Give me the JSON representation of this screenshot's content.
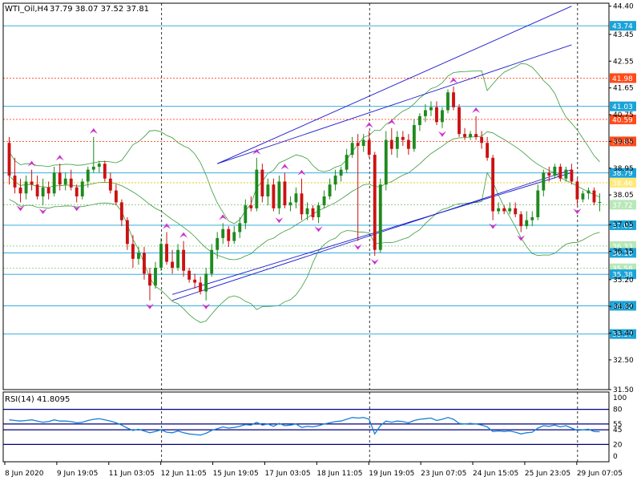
{
  "header": {
    "symbol": "WTI_Oil,H4",
    "ohlc": "37.79 38.07 37.52 37.81"
  },
  "rsi_panel": {
    "label": "RSI(14) 41.8095",
    "scale": [
      "100",
      "80",
      "55",
      "45",
      "20",
      "0"
    ],
    "levels": [
      80,
      55,
      45,
      20
    ]
  },
  "colors": {
    "bull": "#1e8a1e",
    "bear": "#cc1111",
    "level_line": "#1aa3d8",
    "level_tag": "#1aa3d8",
    "resistance_tag": "#ff4a1a",
    "pivot_tag": "#ffe97a",
    "pale_tag": "#b8e8b8",
    "channel": "#1a1acc",
    "bollinger": "#3a9a3a",
    "fractal": "#cc33cc",
    "rsi_line": "#1a7fd8"
  },
  "chart_data": {
    "type": "candlestick",
    "title": "WTI_Oil,H4",
    "ylim": [
      31.5,
      44.5
    ],
    "y_ticks": [
      "44.40",
      "43.45",
      "42.55",
      "41.65",
      "40.75",
      "39.85",
      "38.95",
      "38.05",
      "37.05",
      "36.15",
      "35.20",
      "34.30",
      "33.40",
      "32.50",
      "31.50"
    ],
    "x_ticks": [
      "8 Jun 2020",
      "9 Jun 19:05",
      "11 Jun 03:05",
      "12 Jun 11:05",
      "15 Jun 19:05",
      "17 Jun 03:05",
      "18 Jun 11:05",
      "19 Jun 19:05",
      "23 Jun 07:05",
      "24 Jun 15:05",
      "25 Jun 23:05",
      "29 Jun 07:05"
    ],
    "period_separators": [
      "12 Jun 11:05",
      "19 Jun 19:05",
      "29 Jun 07:05"
    ],
    "horizontal_levels": [
      {
        "label": "43.74",
        "value": 43.74,
        "style": "solid",
        "tag": "level"
      },
      {
        "label": "41.98",
        "value": 41.98,
        "style": "dotted",
        "tag": "resistance"
      },
      {
        "label": "41.03",
        "value": 41.03,
        "style": "solid",
        "tag": "level"
      },
      {
        "label": "40.59",
        "value": 40.59,
        "style": "dotted",
        "tag": "resistance"
      },
      {
        "label": "39.85",
        "value": 39.85,
        "style": "dotted",
        "tag": "resistance"
      },
      {
        "label": "38.79",
        "value": 38.79,
        "style": "solid",
        "tag": "level"
      },
      {
        "label": "38.46",
        "value": 38.46,
        "style": "dotted",
        "tag": "pivot"
      },
      {
        "label": "37.72",
        "value": 37.72,
        "style": "dotted",
        "tag": "pale"
      },
      {
        "label": "37.03",
        "value": 37.03,
        "style": "solid",
        "tag": "level"
      },
      {
        "label": "36.33",
        "value": 36.33,
        "style": "dotted",
        "tag": "pale"
      },
      {
        "label": "36.10",
        "value": 36.1,
        "style": "solid",
        "tag": "level"
      },
      {
        "label": "35.58",
        "value": 35.58,
        "style": "dotted",
        "tag": "pale"
      },
      {
        "label": "35.38",
        "value": 35.38,
        "style": "solid",
        "tag": "level"
      },
      {
        "label": "34.32",
        "value": 34.32,
        "style": "solid",
        "tag": "level"
      },
      {
        "label": "33.37",
        "value": 33.37,
        "style": "solid",
        "tag": "level"
      }
    ],
    "candles": [
      {
        "o": 39.8,
        "h": 40.0,
        "l": 38.4,
        "c": 38.7
      },
      {
        "o": 38.7,
        "h": 39.3,
        "l": 38.1,
        "c": 38.3
      },
      {
        "o": 38.3,
        "h": 38.6,
        "l": 37.8,
        "c": 38.1
      },
      {
        "o": 38.1,
        "h": 38.7,
        "l": 37.9,
        "c": 38.5
      },
      {
        "o": 38.5,
        "h": 38.9,
        "l": 38.2,
        "c": 38.4
      },
      {
        "o": 38.4,
        "h": 38.7,
        "l": 37.9,
        "c": 38.0
      },
      {
        "o": 38.0,
        "h": 38.6,
        "l": 37.7,
        "c": 38.3
      },
      {
        "o": 38.3,
        "h": 38.5,
        "l": 37.9,
        "c": 38.1
      },
      {
        "o": 38.1,
        "h": 39.0,
        "l": 38.0,
        "c": 38.8
      },
      {
        "o": 38.8,
        "h": 39.1,
        "l": 38.2,
        "c": 38.4
      },
      {
        "o": 38.4,
        "h": 38.8,
        "l": 38.2,
        "c": 38.6
      },
      {
        "o": 38.6,
        "h": 38.9,
        "l": 38.2,
        "c": 38.3
      },
      {
        "o": 38.3,
        "h": 38.4,
        "l": 37.8,
        "c": 38.0
      },
      {
        "o": 38.0,
        "h": 38.6,
        "l": 37.9,
        "c": 38.5
      },
      {
        "o": 38.5,
        "h": 39.0,
        "l": 38.3,
        "c": 38.9
      },
      {
        "o": 38.9,
        "h": 40.0,
        "l": 38.8,
        "c": 39.0
      },
      {
        "o": 39.0,
        "h": 39.2,
        "l": 38.8,
        "c": 39.1
      },
      {
        "o": 39.1,
        "h": 39.2,
        "l": 38.5,
        "c": 38.6
      },
      {
        "o": 38.6,
        "h": 38.8,
        "l": 38.1,
        "c": 38.2
      },
      {
        "o": 38.2,
        "h": 38.4,
        "l": 37.7,
        "c": 37.8
      },
      {
        "o": 37.8,
        "h": 37.9,
        "l": 37.0,
        "c": 37.2
      },
      {
        "o": 37.2,
        "h": 37.3,
        "l": 36.2,
        "c": 36.4
      },
      {
        "o": 36.4,
        "h": 36.7,
        "l": 35.6,
        "c": 35.9
      },
      {
        "o": 35.9,
        "h": 36.3,
        "l": 35.7,
        "c": 36.1
      },
      {
        "o": 36.1,
        "h": 36.3,
        "l": 35.2,
        "c": 35.4
      },
      {
        "o": 35.4,
        "h": 35.6,
        "l": 34.5,
        "c": 35.0
      },
      {
        "o": 35.0,
        "h": 35.8,
        "l": 34.9,
        "c": 35.6
      },
      {
        "o": 35.6,
        "h": 36.6,
        "l": 35.5,
        "c": 36.4
      },
      {
        "o": 36.4,
        "h": 36.8,
        "l": 35.7,
        "c": 35.8
      },
      {
        "o": 35.8,
        "h": 36.2,
        "l": 35.4,
        "c": 35.6
      },
      {
        "o": 35.6,
        "h": 36.4,
        "l": 35.5,
        "c": 36.2
      },
      {
        "o": 36.2,
        "h": 36.5,
        "l": 35.3,
        "c": 35.5
      },
      {
        "o": 35.5,
        "h": 35.6,
        "l": 35.1,
        "c": 35.2
      },
      {
        "o": 35.2,
        "h": 35.4,
        "l": 34.9,
        "c": 35.1
      },
      {
        "o": 35.1,
        "h": 35.3,
        "l": 34.7,
        "c": 34.8
      },
      {
        "o": 34.8,
        "h": 35.6,
        "l": 34.5,
        "c": 35.4
      },
      {
        "o": 35.4,
        "h": 36.4,
        "l": 35.3,
        "c": 36.2
      },
      {
        "o": 36.2,
        "h": 36.8,
        "l": 35.9,
        "c": 36.6
      },
      {
        "o": 36.6,
        "h": 37.1,
        "l": 36.4,
        "c": 36.9
      },
      {
        "o": 36.9,
        "h": 37.0,
        "l": 36.3,
        "c": 36.5
      },
      {
        "o": 36.5,
        "h": 37.0,
        "l": 36.4,
        "c": 36.8
      },
      {
        "o": 36.8,
        "h": 37.3,
        "l": 36.6,
        "c": 37.1
      },
      {
        "o": 37.1,
        "h": 37.9,
        "l": 36.9,
        "c": 37.7
      },
      {
        "o": 37.7,
        "h": 38.0,
        "l": 37.5,
        "c": 37.6
      },
      {
        "o": 37.6,
        "h": 39.3,
        "l": 37.5,
        "c": 38.9
      },
      {
        "o": 38.9,
        "h": 39.1,
        "l": 37.8,
        "c": 38.0
      },
      {
        "o": 38.0,
        "h": 38.6,
        "l": 37.7,
        "c": 38.4
      },
      {
        "o": 38.4,
        "h": 38.6,
        "l": 37.5,
        "c": 37.6
      },
      {
        "o": 37.6,
        "h": 38.7,
        "l": 37.4,
        "c": 38.5
      },
      {
        "o": 38.5,
        "h": 38.8,
        "l": 37.6,
        "c": 37.7
      },
      {
        "o": 37.7,
        "h": 38.0,
        "l": 37.5,
        "c": 37.8
      },
      {
        "o": 37.8,
        "h": 38.3,
        "l": 37.6,
        "c": 38.1
      },
      {
        "o": 38.1,
        "h": 38.6,
        "l": 37.2,
        "c": 37.4
      },
      {
        "o": 37.4,
        "h": 37.8,
        "l": 37.2,
        "c": 37.6
      },
      {
        "o": 37.6,
        "h": 37.7,
        "l": 37.2,
        "c": 37.3
      },
      {
        "o": 37.3,
        "h": 37.8,
        "l": 37.1,
        "c": 37.7
      },
      {
        "o": 37.7,
        "h": 38.2,
        "l": 37.6,
        "c": 38.0
      },
      {
        "o": 38.0,
        "h": 38.6,
        "l": 37.9,
        "c": 38.4
      },
      {
        "o": 38.4,
        "h": 38.9,
        "l": 38.2,
        "c": 38.7
      },
      {
        "o": 38.7,
        "h": 39.0,
        "l": 38.5,
        "c": 38.9
      },
      {
        "o": 38.9,
        "h": 39.6,
        "l": 38.8,
        "c": 39.4
      },
      {
        "o": 39.4,
        "h": 40.0,
        "l": 39.3,
        "c": 39.8
      },
      {
        "o": 39.8,
        "h": 40.1,
        "l": 36.5,
        "c": 39.7
      },
      {
        "o": 39.7,
        "h": 40.1,
        "l": 39.5,
        "c": 39.9
      },
      {
        "o": 39.9,
        "h": 40.2,
        "l": 39.3,
        "c": 39.4
      },
      {
        "o": 39.4,
        "h": 39.5,
        "l": 36.0,
        "c": 36.2
      },
      {
        "o": 36.2,
        "h": 38.6,
        "l": 36.1,
        "c": 38.4
      },
      {
        "o": 38.4,
        "h": 40.2,
        "l": 38.2,
        "c": 39.9
      },
      {
        "o": 39.9,
        "h": 40.3,
        "l": 39.4,
        "c": 39.6
      },
      {
        "o": 39.6,
        "h": 40.2,
        "l": 39.3,
        "c": 40.0
      },
      {
        "o": 40.0,
        "h": 40.2,
        "l": 39.7,
        "c": 39.9
      },
      {
        "o": 39.9,
        "h": 40.1,
        "l": 39.4,
        "c": 39.6
      },
      {
        "o": 39.6,
        "h": 40.6,
        "l": 39.5,
        "c": 40.4
      },
      {
        "o": 40.4,
        "h": 40.8,
        "l": 40.2,
        "c": 40.7
      },
      {
        "o": 40.7,
        "h": 41.1,
        "l": 40.5,
        "c": 40.9
      },
      {
        "o": 40.9,
        "h": 41.2,
        "l": 40.7,
        "c": 41.0
      },
      {
        "o": 41.0,
        "h": 41.2,
        "l": 40.4,
        "c": 40.5
      },
      {
        "o": 40.5,
        "h": 41.0,
        "l": 40.3,
        "c": 40.9
      },
      {
        "o": 40.9,
        "h": 41.6,
        "l": 40.8,
        "c": 41.5
      },
      {
        "o": 41.5,
        "h": 41.7,
        "l": 40.9,
        "c": 41.0
      },
      {
        "o": 41.0,
        "h": 41.1,
        "l": 40.0,
        "c": 40.1
      },
      {
        "o": 40.1,
        "h": 40.3,
        "l": 39.9,
        "c": 40.0
      },
      {
        "o": 40.0,
        "h": 40.2,
        "l": 39.9,
        "c": 40.1
      },
      {
        "o": 40.1,
        "h": 40.7,
        "l": 39.9,
        "c": 40.0
      },
      {
        "o": 40.0,
        "h": 40.2,
        "l": 39.6,
        "c": 39.8
      },
      {
        "o": 39.8,
        "h": 40.0,
        "l": 39.2,
        "c": 39.3
      },
      {
        "o": 39.3,
        "h": 39.4,
        "l": 37.2,
        "c": 37.5
      },
      {
        "o": 37.5,
        "h": 37.8,
        "l": 37.4,
        "c": 37.6
      },
      {
        "o": 37.6,
        "h": 37.7,
        "l": 37.4,
        "c": 37.5
      },
      {
        "o": 37.5,
        "h": 37.8,
        "l": 37.4,
        "c": 37.6
      },
      {
        "o": 37.6,
        "h": 37.8,
        "l": 37.3,
        "c": 37.4
      },
      {
        "o": 37.4,
        "h": 37.5,
        "l": 36.8,
        "c": 37.0
      },
      {
        "o": 37.0,
        "h": 37.5,
        "l": 36.9,
        "c": 37.2
      },
      {
        "o": 37.2,
        "h": 37.5,
        "l": 37.0,
        "c": 37.3
      },
      {
        "o": 37.3,
        "h": 38.4,
        "l": 37.2,
        "c": 38.2
      },
      {
        "o": 38.2,
        "h": 38.9,
        "l": 38.0,
        "c": 38.8
      },
      {
        "o": 38.8,
        "h": 39.0,
        "l": 38.5,
        "c": 38.7
      },
      {
        "o": 38.7,
        "h": 39.1,
        "l": 38.6,
        "c": 39.0
      },
      {
        "o": 39.0,
        "h": 39.1,
        "l": 38.5,
        "c": 38.6
      },
      {
        "o": 38.6,
        "h": 39.0,
        "l": 38.5,
        "c": 38.9
      },
      {
        "o": 38.9,
        "h": 39.1,
        "l": 38.4,
        "c": 38.5
      },
      {
        "o": 38.5,
        "h": 38.6,
        "l": 37.7,
        "c": 37.9
      },
      {
        "o": 37.9,
        "h": 38.2,
        "l": 37.8,
        "c": 38.1
      },
      {
        "o": 38.1,
        "h": 38.3,
        "l": 37.9,
        "c": 38.2
      },
      {
        "o": 38.2,
        "h": 38.3,
        "l": 37.7,
        "c": 37.8
      },
      {
        "o": 37.8,
        "h": 38.1,
        "l": 37.5,
        "c": 37.81
      }
    ],
    "channel_lines": [
      {
        "x1": 29,
        "y1": 34.5,
        "x2": 100,
        "y2": 38.9
      },
      {
        "x1": 29,
        "y1": 34.7,
        "x2": 100,
        "y2": 38.8
      },
      {
        "x1": 37,
        "y1": 39.1,
        "x2": 100,
        "y2": 44.4
      },
      {
        "x1": 37,
        "y1": 39.1,
        "x2": 100,
        "y2": 43.1
      }
    ],
    "rsi": {
      "ylim": [
        0,
        100
      ],
      "values": [
        62,
        61,
        60,
        61,
        62,
        60,
        58,
        59,
        62,
        60,
        60,
        59,
        57,
        58,
        61,
        63,
        64,
        62,
        60,
        57,
        53,
        48,
        44,
        46,
        43,
        40,
        42,
        45,
        41,
        40,
        43,
        40,
        38,
        37,
        36,
        39,
        44,
        47,
        50,
        48,
        49,
        51,
        54,
        53,
        58,
        53,
        55,
        51,
        56,
        52,
        53,
        55,
        49,
        51,
        50,
        52,
        55,
        57,
        59,
        60,
        63,
        66,
        65,
        66,
        63,
        38,
        52,
        60,
        58,
        60,
        59,
        57,
        61,
        63,
        64,
        65,
        61,
        63,
        66,
        63,
        56,
        55,
        56,
        55,
        53,
        50,
        42,
        43,
        42,
        43,
        41,
        38,
        40,
        41,
        48,
        52,
        51,
        53,
        50,
        52,
        48,
        44,
        45,
        46,
        42,
        41.8
      ]
    }
  }
}
